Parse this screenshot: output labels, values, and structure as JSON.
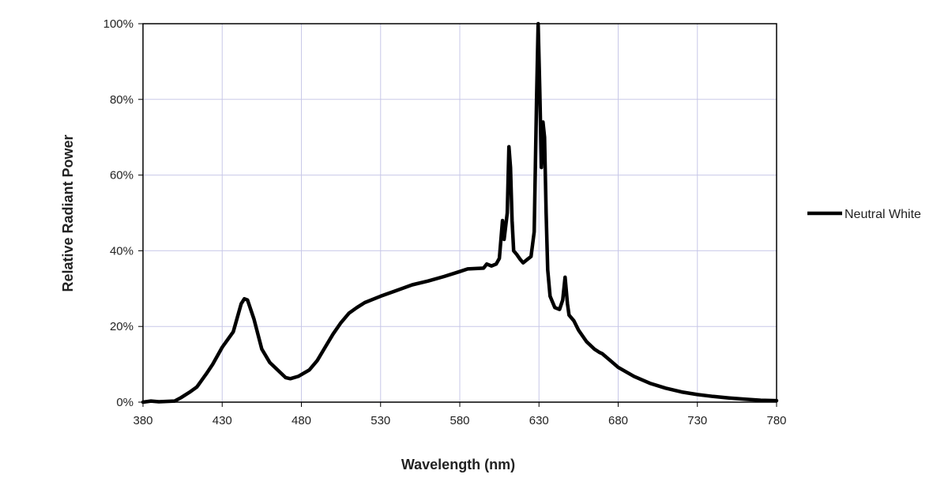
{
  "chart_data": {
    "type": "line",
    "title": "",
    "xlabel": "Wavelength (nm)",
    "ylabel": "Relative Radiant Power",
    "xlim": [
      380,
      780
    ],
    "ylim": [
      0,
      100
    ],
    "xticks": [
      380,
      430,
      480,
      530,
      580,
      630,
      680,
      730,
      780
    ],
    "yticks": [
      0,
      20,
      40,
      60,
      80,
      100
    ],
    "ytick_labels": [
      "0%",
      "20%",
      "40%",
      "60%",
      "80%",
      "100%"
    ],
    "grid": true,
    "legend_placement": "right",
    "colors": {
      "line": "#000000",
      "grid": "#c8c8e8",
      "axis": "#000000"
    },
    "series": [
      {
        "name": "Neutral White",
        "x": [
          380,
          385,
          390,
          400,
          404,
          410,
          414,
          420,
          424,
          430,
          437,
          442,
          444,
          446,
          450,
          455,
          460,
          465,
          470,
          473,
          478,
          485,
          490,
          495,
          500,
          505,
          510,
          515,
          520,
          530,
          540,
          550,
          560,
          570,
          580,
          585,
          590,
          595,
          597,
          600,
          603,
          605,
          607,
          608,
          610,
          611,
          612,
          613,
          614,
          616,
          618,
          620,
          622,
          625,
          627,
          628.5,
          629.5,
          630.5,
          631.5,
          632.5,
          633.5,
          634.5,
          635.5,
          637,
          640,
          643,
          645,
          646.5,
          648,
          649,
          652,
          655,
          660,
          665,
          668,
          670,
          675,
          680,
          690,
          700,
          710,
          720,
          730,
          740,
          750,
          760,
          770,
          780
        ],
        "y": [
          0,
          0.3,
          0.1,
          0.3,
          1.2,
          2.8,
          4,
          7.5,
          10,
          14.5,
          18.6,
          26,
          27.3,
          27,
          22,
          14,
          10.5,
          8.5,
          6.5,
          6.2,
          6.8,
          8.5,
          11,
          14.5,
          18,
          21,
          23.5,
          25,
          26.3,
          28,
          29.5,
          31,
          32,
          33.2,
          34.5,
          35.2,
          35.3,
          35.4,
          36.5,
          36,
          36.5,
          38,
          48,
          43,
          50,
          67.5,
          62,
          48,
          40,
          39,
          37.8,
          36.8,
          37.5,
          38.5,
          45,
          80,
          100,
          82,
          62,
          74,
          70,
          50,
          35,
          28,
          25,
          24.5,
          27,
          33,
          26,
          23,
          21.5,
          19,
          16,
          14,
          13.2,
          12.8,
          11,
          9.2,
          6.8,
          5,
          3.7,
          2.7,
          2,
          1.5,
          1.1,
          0.8,
          0.5,
          0.4
        ]
      }
    ]
  }
}
